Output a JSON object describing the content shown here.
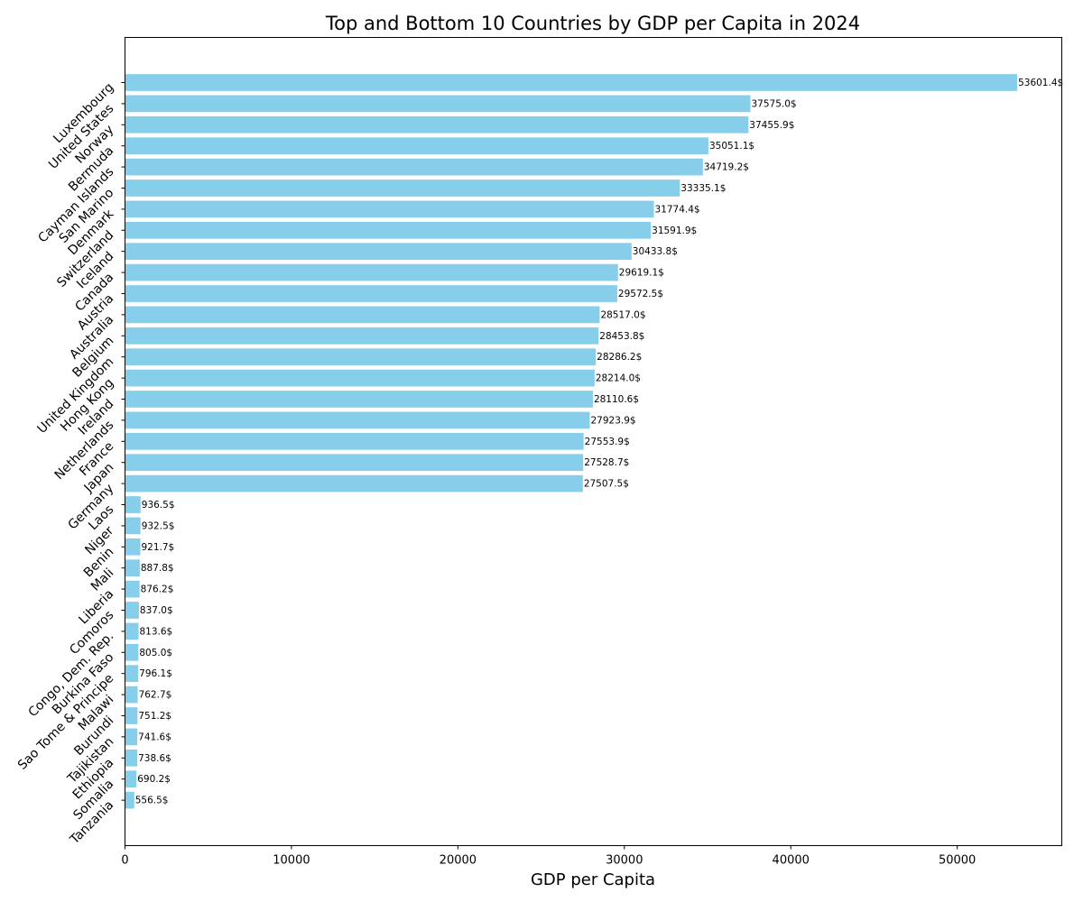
{
  "chart_data": {
    "type": "bar",
    "orientation": "horizontal",
    "title": "Top and Bottom 10 Countries by GDP per Capita in 2024",
    "xlabel": "GDP per Capita",
    "ylabel": "",
    "xlim": [
      0,
      56281
    ],
    "x_ticks": [
      0,
      10000,
      20000,
      30000,
      40000,
      50000
    ],
    "x_tick_labels": [
      "0",
      "10000",
      "20000",
      "30000",
      "40000",
      "50000"
    ],
    "grid": false,
    "bar_color": "#87CEEB",
    "categories": [
      "Luxembourg",
      "United States",
      "Norway",
      "Bermuda",
      "Cayman Islands",
      "San Marino",
      "Denmark",
      "Switzerland",
      "Iceland",
      "Canada",
      "Austria",
      "Australia",
      "Belgium",
      "United Kingdom",
      "Hong Kong",
      "Ireland",
      "Netherlands",
      "France",
      "Japan",
      "Germany",
      "Laos",
      "Niger",
      "Benin",
      "Mali",
      "Liberia",
      "Comoros",
      "Congo, Dem. Rep.",
      "Burkina Faso",
      "Sao Tome & Principe",
      "Malawi",
      "Burundi",
      "Tajikistan",
      "Ethiopia",
      "Somalia",
      "Tanzania"
    ],
    "values": [
      53601.4,
      37575.0,
      37455.9,
      35051.1,
      34719.2,
      33335.1,
      31774.4,
      31591.9,
      30433.8,
      29619.1,
      29572.5,
      28517.0,
      28453.8,
      28286.2,
      28214.0,
      28110.6,
      27923.9,
      27553.9,
      27528.7,
      27507.5,
      936.5,
      932.5,
      921.7,
      887.8,
      876.2,
      837.0,
      813.6,
      805.0,
      796.1,
      762.7,
      751.2,
      741.6,
      738.6,
      690.2,
      556.5
    ],
    "data_labels": [
      "53601.4$",
      "37575.0$",
      "37455.9$",
      "35051.1$",
      "34719.2$",
      "33335.1$",
      "31774.4$",
      "31591.9$",
      "30433.8$",
      "29619.1$",
      "29572.5$",
      "28517.0$",
      "28453.8$",
      "28286.2$",
      "28214.0$",
      "28110.6$",
      "27923.9$",
      "27553.9$",
      "27528.7$",
      "27507.5$",
      "936.5$",
      "932.5$",
      "921.7$",
      "887.8$",
      "876.2$",
      "837.0$",
      "813.6$",
      "805.0$",
      "796.1$",
      "762.7$",
      "751.2$",
      "741.6$",
      "738.6$",
      "690.2$",
      "556.5$"
    ]
  }
}
